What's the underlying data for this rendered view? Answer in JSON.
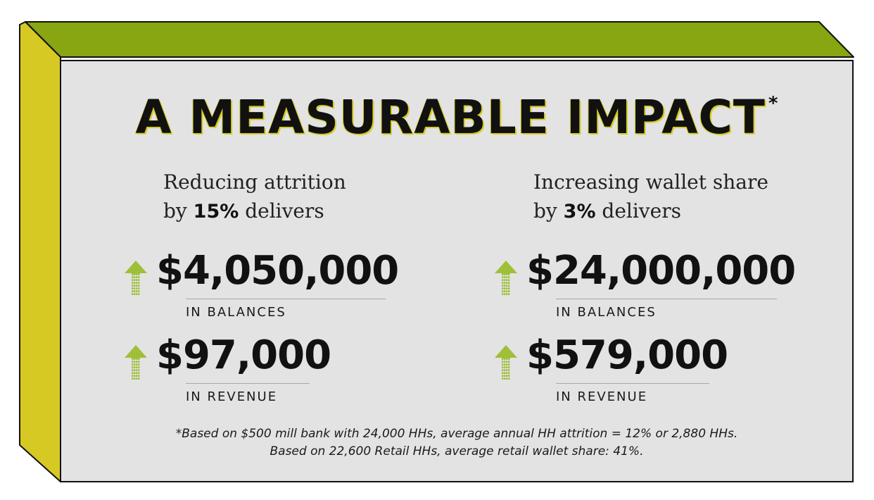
{
  "heading": {
    "title": "A MEASURABLE IMPACT",
    "asterisk": "*"
  },
  "left": {
    "intro_line1": "Reducing attrition",
    "intro_by": "by",
    "intro_pct": "15%",
    "intro_tail": "delivers",
    "balances": {
      "value": "$4,050,000",
      "label": "IN BALANCES"
    },
    "revenue": {
      "value": "$97,000",
      "label": "IN REVENUE"
    }
  },
  "right": {
    "intro_line1": "Increasing wallet share",
    "intro_by": "by",
    "intro_pct": "3%",
    "intro_tail": "delivers",
    "balances": {
      "value": "$24,000,000",
      "label": "IN BALANCES"
    },
    "revenue": {
      "value": "$579,000",
      "label": "IN REVENUE"
    }
  },
  "footnote": {
    "line1": "*Based on $500 mill bank with 24,000 HHs, average annual HH attrition = 12% or 2,880 HHs.",
    "line2": "Based on 22,600 Retail HHs, average retail wallet share: 41%."
  },
  "icons": {
    "increase": "up-arrow-icon"
  },
  "colors": {
    "top_face": "#88a512",
    "side_face": "#d7c923",
    "front_face": "#e3e3e3",
    "outline": "#111111",
    "arrow": "#9fbf3a",
    "title_shadow": "#d6cb22"
  }
}
